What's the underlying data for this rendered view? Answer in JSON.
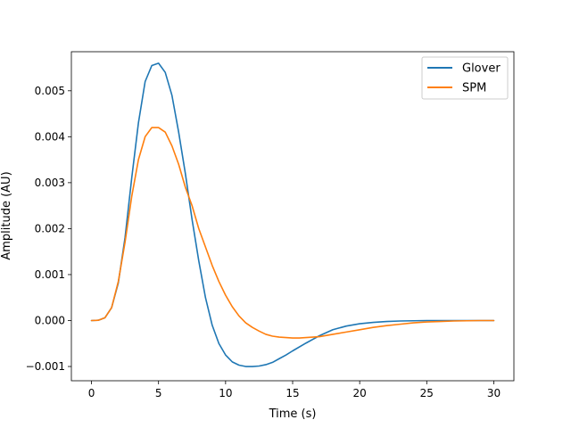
{
  "chart_data": {
    "type": "line",
    "xlabel": "Time (s)",
    "ylabel": "Amplitude (AU)",
    "xlim": [
      -1.5,
      31.5
    ],
    "ylim": [
      -0.00131,
      0.00585
    ],
    "xticks": [
      0,
      5,
      10,
      15,
      20,
      25,
      30
    ],
    "xtick_labels": [
      "0",
      "5",
      "10",
      "15",
      "20",
      "25",
      "30"
    ],
    "yticks": [
      -0.001,
      0.0,
      0.001,
      0.002,
      0.003,
      0.004,
      0.005
    ],
    "ytick_labels": [
      "−0.001",
      "0.000",
      "0.001",
      "0.002",
      "0.003",
      "0.004",
      "0.005"
    ],
    "legend_position": "top-right",
    "grid": false,
    "series": [
      {
        "name": "Glover",
        "color": "#1f77b4",
        "x": [
          0,
          0.5,
          1,
          1.5,
          2,
          2.5,
          3,
          3.5,
          4,
          4.5,
          5,
          5.5,
          6,
          6.5,
          7,
          7.5,
          8,
          8.5,
          9,
          9.5,
          10,
          10.5,
          11,
          11.5,
          12,
          12.5,
          13,
          13.5,
          14,
          14.5,
          15,
          16,
          17,
          18,
          19,
          20,
          21,
          22,
          23,
          24,
          25,
          26,
          27,
          28,
          29,
          30
        ],
        "y": [
          0.0,
          5e-06,
          6e-05,
          0.00028,
          0.00082,
          0.0018,
          0.0031,
          0.0043,
          0.0052,
          0.00555,
          0.0056,
          0.0054,
          0.0049,
          0.0041,
          0.0032,
          0.0022,
          0.0013,
          0.0005,
          -0.0001,
          -0.0005,
          -0.00075,
          -0.0009,
          -0.00097,
          -0.001,
          -0.001,
          -0.00099,
          -0.00096,
          -0.00091,
          -0.00083,
          -0.00075,
          -0.00066,
          -0.00049,
          -0.00033,
          -0.0002,
          -0.00012,
          -7e-05,
          -4e-05,
          -2e-05,
          -1e-05,
          -5e-06,
          0.0,
          0.0,
          0.0,
          0.0,
          0.0,
          0.0
        ]
      },
      {
        "name": "SPM",
        "color": "#ff7f0e",
        "x": [
          0,
          0.5,
          1,
          1.5,
          2,
          2.5,
          3,
          3.5,
          4,
          4.5,
          5,
          5.5,
          6,
          6.5,
          7,
          7.5,
          8,
          8.5,
          9,
          9.5,
          10,
          10.5,
          11,
          11.5,
          12,
          12.5,
          13,
          13.5,
          14,
          14.5,
          15,
          15.5,
          16,
          16.5,
          17,
          18,
          19,
          20,
          21,
          22,
          23,
          24,
          25,
          26,
          27,
          28,
          29,
          30
        ],
        "y": [
          0.0,
          5e-06,
          6e-05,
          0.00028,
          0.00085,
          0.0017,
          0.0027,
          0.0035,
          0.004,
          0.0042,
          0.0042,
          0.0041,
          0.0038,
          0.0034,
          0.0029,
          0.0025,
          0.002,
          0.0016,
          0.0012,
          0.00085,
          0.00055,
          0.0003,
          0.0001,
          -5e-05,
          -0.00015,
          -0.00023,
          -0.0003,
          -0.00034,
          -0.00036,
          -0.00037,
          -0.00038,
          -0.00038,
          -0.00037,
          -0.00036,
          -0.00035,
          -0.0003,
          -0.00025,
          -0.0002,
          -0.00015,
          -0.00011,
          -8e-05,
          -5e-05,
          -3e-05,
          -2e-05,
          -1e-05,
          -5e-06,
          0.0,
          0.0
        ]
      }
    ]
  }
}
